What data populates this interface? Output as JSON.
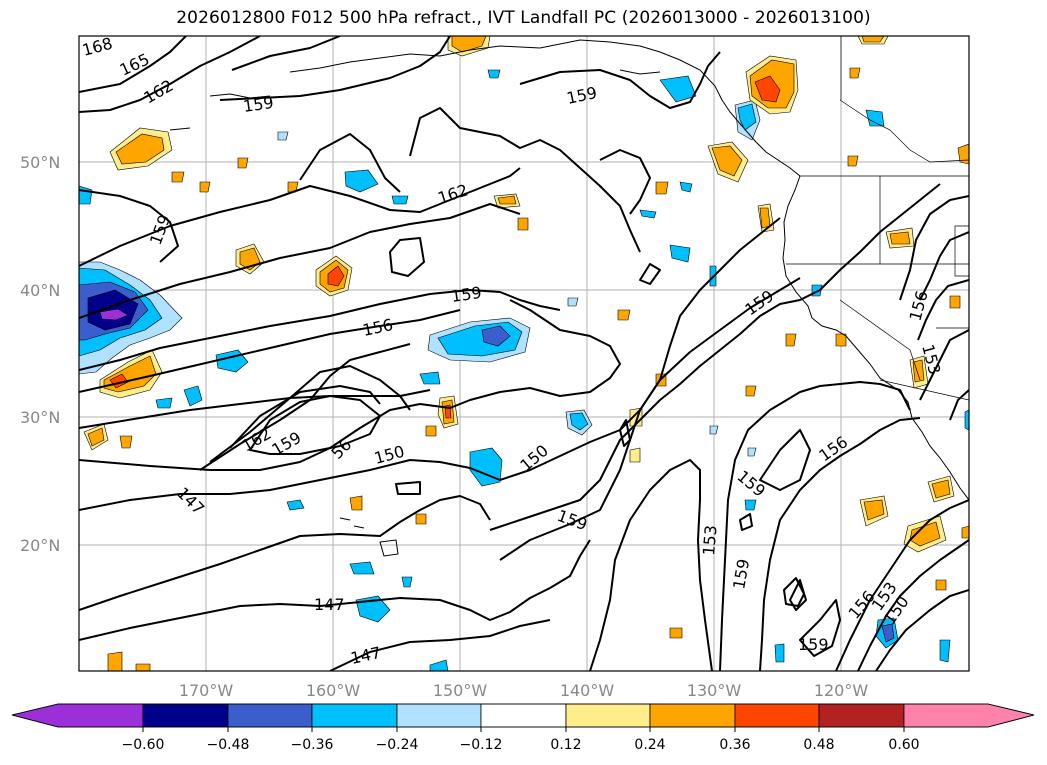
{
  "title": "2026012800 F012 500 hPa refract., IVT Landfall PC (2026013000 - 2026013100)",
  "lat_labels": [
    "50°N",
    "40°N",
    "30°N",
    "20°N"
  ],
  "lon_labels": [
    "170°W",
    "160°W",
    "150°W",
    "140°W",
    "130°W",
    "120°W"
  ],
  "contour_labels": [
    "168",
    "165",
    "162",
    "159",
    "159",
    "162",
    "159",
    "159",
    "156",
    "159",
    "162",
    "159",
    "56",
    "150",
    "150",
    "159",
    "147",
    "153",
    "159",
    "159",
    "156",
    "156",
    "153",
    "156",
    "153",
    "150",
    "147",
    "147",
    "159"
  ],
  "colorbar": {
    "ticks": [
      "−0.60",
      "−0.48",
      "−0.36",
      "−0.24",
      "−0.12",
      "0.12",
      "0.24",
      "0.36",
      "0.48",
      "0.60"
    ],
    "colors": [
      "#9b30d9",
      "#00008b",
      "#3a5fcd",
      "#00bfff",
      "#b0e2ff",
      "#ffffff",
      "#ffec8b",
      "#ffa500",
      "#ff4500",
      "#b22222",
      "#ff82ab"
    ]
  },
  "fill_colors": {
    "light_blue": "#b0e2ff",
    "blue": "#00bfff",
    "mid_blue": "#3a5fcd",
    "navy": "#00008b",
    "purple": "#9b30d9",
    "yellow": "#ffec8b",
    "orange": "#ffa500",
    "red_orange": "#ff4500"
  }
}
